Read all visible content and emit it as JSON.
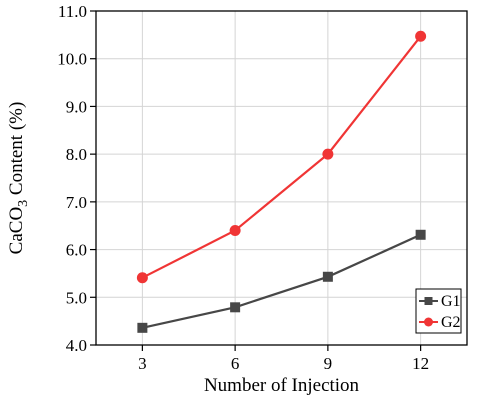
{
  "chart_data": {
    "type": "line",
    "x": [
      3,
      6,
      9,
      12
    ],
    "xticks": [
      "3",
      "6",
      "9",
      "12"
    ],
    "xlim": [
      1.5,
      13.5
    ],
    "ylim": [
      4.0,
      11.0
    ],
    "yticks": [
      "4.0",
      "5.0",
      "6.0",
      "7.0",
      "8.0",
      "9.0",
      "10.0",
      "11.0"
    ],
    "xlabel": "Number of Injection",
    "ylabel_prefix": "CaCO",
    "ylabel_subscript": "3",
    "ylabel_suffix": " Content (%)",
    "grid": true,
    "legend_position": "bottom-right",
    "series": [
      {
        "name": "G1",
        "values": [
          4.36,
          4.79,
          5.43,
          6.31
        ],
        "color": "#474747",
        "marker": "square"
      },
      {
        "name": "G2",
        "values": [
          5.41,
          6.4,
          8.0,
          10.47
        ],
        "color": "#f03535",
        "marker": "circle"
      }
    ]
  }
}
